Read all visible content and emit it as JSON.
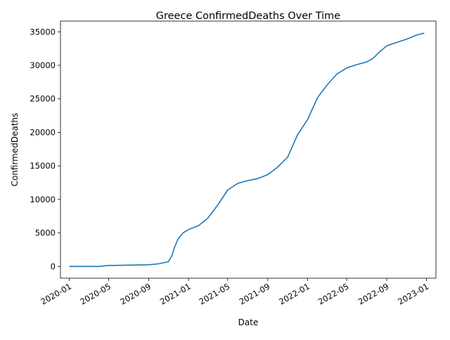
{
  "chart_data": {
    "type": "line",
    "title": "Greece  ConfirmedDeaths Over Time",
    "xlabel": "Date",
    "ylabel": "ConfirmedDeaths",
    "x_ticks": [
      "2020-01",
      "2020-05",
      "2020-09",
      "2021-01",
      "2021-05",
      "2021-09",
      "2022-01",
      "2022-05",
      "2022-09",
      "2023-01"
    ],
    "y_ticks": [
      "0",
      "5000",
      "10000",
      "15000",
      "20000",
      "25000",
      "30000",
      "35000"
    ],
    "ylim": [
      -1750,
      36600
    ],
    "xlim": [
      "2019-12-05",
      "2023-01-30"
    ],
    "grid": false,
    "line_color": "#1f77b4",
    "series": [
      {
        "x": [
          "2020-01-01",
          "2020-03-01",
          "2020-03-31",
          "2020-04-30",
          "2020-06-30",
          "2020-08-31",
          "2020-10-01",
          "2020-10-31",
          "2020-11-10",
          "2020-11-20",
          "2020-12-01",
          "2020-12-15",
          "2021-01-01",
          "2021-02-01",
          "2021-03-01",
          "2021-04-01",
          "2021-05-01",
          "2021-06-01",
          "2021-07-01",
          "2021-08-01",
          "2021-09-01",
          "2021-10-01",
          "2021-11-01",
          "2021-12-01",
          "2022-01-01",
          "2022-02-01",
          "2022-03-01",
          "2022-04-01",
          "2022-05-01",
          "2022-06-01",
          "2022-07-01",
          "2022-07-20",
          "2022-08-10",
          "2022-09-01",
          "2022-10-01",
          "2022-11-01",
          "2022-12-01",
          "2022-12-25"
        ],
        "y": [
          0,
          0,
          0,
          150,
          200,
          250,
          400,
          700,
          1500,
          3000,
          4200,
          5000,
          5500,
          6100,
          7200,
          9200,
          11400,
          12400,
          12800,
          13100,
          13700,
          14800,
          16300,
          19600,
          21900,
          25200,
          27000,
          28700,
          29600,
          30100,
          30500,
          31000,
          32000,
          32900,
          33400,
          33900,
          34500,
          34800
        ]
      }
    ]
  }
}
